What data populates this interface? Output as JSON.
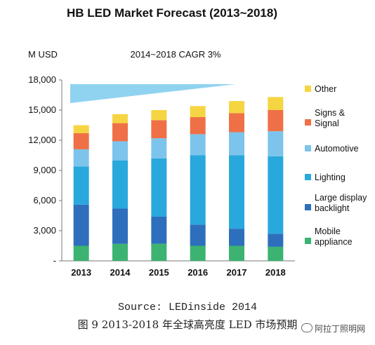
{
  "chart_data": {
    "type": "bar",
    "stacked": true,
    "title": "HB LED Market Forecast (2013~2018)",
    "ylabel": "M USD",
    "annotation": "2014~2018 CAGR 3%",
    "categories": [
      "2013",
      "2014",
      "2015",
      "2016",
      "2017",
      "2018"
    ],
    "ylim": [
      0,
      18000
    ],
    "yticks": [
      0,
      3000,
      6000,
      9000,
      12000,
      15000,
      18000
    ],
    "ytick_labels": [
      "-",
      "3,000",
      "6,000",
      "9,000",
      "12,000",
      "15,000",
      "18,000"
    ],
    "grid": false,
    "legend_position": "right",
    "series": [
      {
        "name": "Mobile\nappliance",
        "color": "#3cb371",
        "values": [
          1500,
          1700,
          1700,
          1500,
          1500,
          1400
        ]
      },
      {
        "name": "Large display\nbacklight",
        "color": "#2e6fbd",
        "values": [
          4100,
          3500,
          2700,
          2100,
          1700,
          1300
        ]
      },
      {
        "name": "Lighting",
        "color": "#29a8dd",
        "values": [
          3800,
          4800,
          5800,
          6900,
          7300,
          7700
        ]
      },
      {
        "name": "Automotive",
        "color": "#7cc4ec",
        "values": [
          1700,
          1900,
          2000,
          2100,
          2300,
          2500
        ]
      },
      {
        "name": "Signs &\nSignal",
        "color": "#ef7047",
        "values": [
          1600,
          1800,
          1800,
          1700,
          1900,
          2100
        ]
      },
      {
        "name": "Other",
        "color": "#f5d542",
        "values": [
          800,
          900,
          1000,
          1100,
          1200,
          1300
        ]
      }
    ]
  },
  "captions": {
    "source": "Source: LEDinside 2014",
    "figure": "图 9   2013-2018 年全球高亮度 LED 市场预期"
  },
  "watermark": "阿拉丁照明网"
}
